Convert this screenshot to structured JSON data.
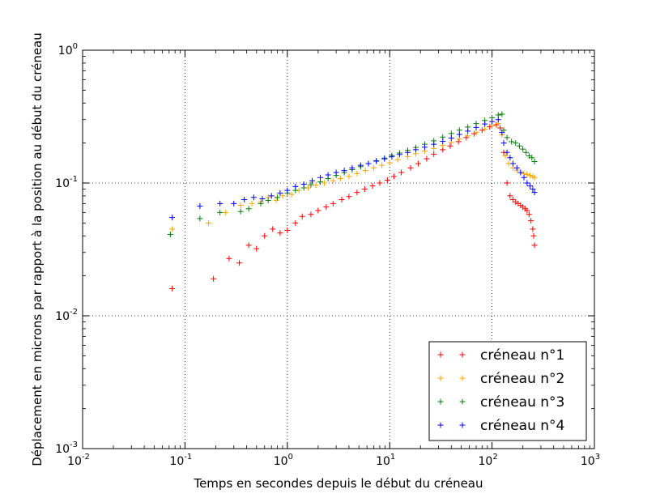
{
  "chart_data": {
    "type": "scatter",
    "title": "",
    "xlabel": "Temps en secondes depuis le début du créneau",
    "ylabel": "Déplacement en microns par rapport à la position au début du créneau",
    "xscale": "log",
    "yscale": "log",
    "xlim": [
      0.01,
      1000
    ],
    "ylim": [
      0.001,
      1
    ],
    "grid": true,
    "legend_position": "lower-right",
    "x_ticks": [
      {
        "base": "10",
        "exp": "-2",
        "value": 0.01
      },
      {
        "base": "10",
        "exp": "-1",
        "value": 0.1
      },
      {
        "base": "10",
        "exp": "0",
        "value": 1
      },
      {
        "base": "10",
        "exp": "1",
        "value": 10
      },
      {
        "base": "10",
        "exp": "2",
        "value": 100
      },
      {
        "base": "10",
        "exp": "3",
        "value": 1000
      }
    ],
    "y_ticks": [
      {
        "base": "10",
        "exp": "-3",
        "value": 0.001
      },
      {
        "base": "10",
        "exp": "-2",
        "value": 0.01
      },
      {
        "base": "10",
        "exp": "-1",
        "value": 0.1
      },
      {
        "base": "10",
        "exp": "0",
        "value": 1
      }
    ],
    "series": [
      {
        "name": "créneau n°1",
        "color": "#ff0000",
        "x": [
          0.075,
          0.19,
          0.27,
          0.34,
          0.42,
          0.5,
          0.6,
          0.72,
          0.85,
          1.0,
          1.2,
          1.4,
          1.7,
          2.0,
          2.4,
          2.8,
          3.4,
          4.0,
          4.8,
          5.7,
          6.8,
          8.0,
          9.5,
          11,
          13,
          16,
          19,
          23,
          27,
          33,
          39,
          47,
          56,
          67,
          80,
          95,
          110,
          120,
          130,
          140,
          150,
          160,
          170,
          180,
          190,
          200,
          210,
          220,
          230,
          240,
          250,
          255,
          260
        ],
        "y": [
          0.016,
          0.019,
          0.027,
          0.025,
          0.034,
          0.032,
          0.04,
          0.045,
          0.042,
          0.044,
          0.05,
          0.056,
          0.058,
          0.062,
          0.066,
          0.07,
          0.075,
          0.079,
          0.085,
          0.09,
          0.095,
          0.1,
          0.105,
          0.112,
          0.12,
          0.13,
          0.14,
          0.152,
          0.165,
          0.178,
          0.19,
          0.205,
          0.22,
          0.235,
          0.25,
          0.265,
          0.275,
          0.26,
          0.17,
          0.1,
          0.08,
          0.075,
          0.072,
          0.07,
          0.068,
          0.066,
          0.064,
          0.062,
          0.058,
          0.052,
          0.045,
          0.04,
          0.034
        ]
      },
      {
        "name": "créneau n°2",
        "color": "#ffa500",
        "x": [
          0.075,
          0.17,
          0.25,
          0.35,
          0.45,
          0.55,
          0.65,
          0.78,
          0.9,
          1.1,
          1.3,
          1.6,
          1.9,
          2.3,
          2.8,
          3.3,
          4.0,
          4.8,
          5.8,
          7.0,
          8.4,
          10,
          12,
          15,
          18,
          22,
          27,
          33,
          40,
          48,
          58,
          70,
          85,
          100,
          115,
          125,
          135,
          145,
          160,
          175,
          190,
          205,
          220,
          235,
          250,
          260
        ],
        "y": [
          0.045,
          0.05,
          0.06,
          0.068,
          0.07,
          0.072,
          0.078,
          0.074,
          0.08,
          0.082,
          0.088,
          0.092,
          0.096,
          0.1,
          0.104,
          0.108,
          0.112,
          0.118,
          0.124,
          0.13,
          0.136,
          0.142,
          0.15,
          0.158,
          0.166,
          0.174,
          0.182,
          0.192,
          0.202,
          0.214,
          0.226,
          0.24,
          0.255,
          0.27,
          0.28,
          0.23,
          0.16,
          0.14,
          0.13,
          0.125,
          0.12,
          0.118,
          0.116,
          0.114,
          0.112,
          0.11
        ]
      },
      {
        "name": "créneau n°3",
        "color": "#008000",
        "x": [
          0.072,
          0.14,
          0.22,
          0.35,
          0.42,
          0.55,
          0.65,
          0.8,
          1.0,
          1.2,
          1.45,
          1.7,
          2.1,
          2.5,
          3.0,
          3.6,
          4.3,
          5.2,
          6.2,
          7.4,
          8.9,
          10.5,
          12.5,
          15,
          18,
          22,
          27,
          33,
          40,
          48,
          58,
          70,
          85,
          100,
          115,
          125,
          130,
          140,
          155,
          170,
          185,
          200,
          215,
          230,
          245,
          260
        ],
        "y": [
          0.041,
          0.054,
          0.06,
          0.061,
          0.064,
          0.07,
          0.074,
          0.078,
          0.084,
          0.088,
          0.092,
          0.097,
          0.102,
          0.108,
          0.114,
          0.12,
          0.126,
          0.133,
          0.14,
          0.147,
          0.154,
          0.161,
          0.168,
          0.176,
          0.185,
          0.196,
          0.208,
          0.222,
          0.236,
          0.25,
          0.264,
          0.28,
          0.296,
          0.31,
          0.325,
          0.33,
          0.25,
          0.22,
          0.205,
          0.2,
          0.19,
          0.18,
          0.17,
          0.16,
          0.155,
          0.145
        ]
      },
      {
        "name": "créneau n°4",
        "color": "#0000ff",
        "x": [
          0.075,
          0.14,
          0.22,
          0.3,
          0.38,
          0.47,
          0.57,
          0.7,
          0.85,
          1.0,
          1.2,
          1.45,
          1.75,
          2.1,
          2.5,
          3.0,
          3.6,
          4.3,
          5.2,
          6.2,
          7.4,
          8.9,
          10.5,
          12.5,
          15,
          18,
          22,
          27,
          33,
          40,
          48,
          58,
          70,
          85,
          100,
          115,
          125,
          130,
          140,
          150,
          160,
          175,
          190,
          205,
          220,
          235,
          250,
          260
        ],
        "y": [
          0.055,
          0.067,
          0.07,
          0.07,
          0.075,
          0.078,
          0.076,
          0.08,
          0.084,
          0.088,
          0.094,
          0.098,
          0.104,
          0.11,
          0.115,
          0.12,
          0.124,
          0.13,
          0.136,
          0.14,
          0.146,
          0.152,
          0.158,
          0.164,
          0.17,
          0.178,
          0.186,
          0.196,
          0.206,
          0.218,
          0.232,
          0.246,
          0.262,
          0.278,
          0.29,
          0.3,
          0.24,
          0.2,
          0.17,
          0.155,
          0.14,
          0.13,
          0.12,
          0.11,
          0.1,
          0.095,
          0.09,
          0.085
        ]
      }
    ]
  }
}
